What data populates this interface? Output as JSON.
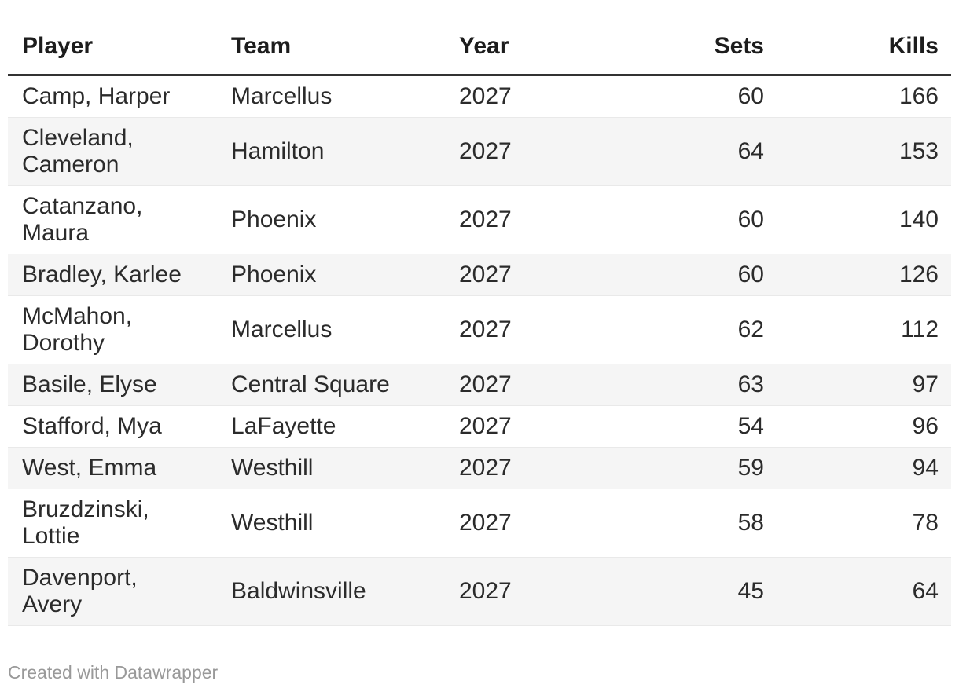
{
  "chart_data": {
    "type": "table",
    "title": "",
    "columns": [
      "Player",
      "Team",
      "Year",
      "Sets",
      "Kills"
    ],
    "column_keys": [
      "player",
      "team",
      "year",
      "sets",
      "kills"
    ],
    "column_align": [
      "left",
      "left",
      "left",
      "right",
      "right"
    ],
    "rows": [
      [
        "Camp, Harper",
        "Marcellus",
        "2027",
        "60",
        "166"
      ],
      [
        "Cleveland, Cameron",
        "Hamilton",
        "2027",
        "64",
        "153"
      ],
      [
        "Catanzano, Maura",
        "Phoenix",
        "2027",
        "60",
        "140"
      ],
      [
        "Bradley, Karlee",
        "Phoenix",
        "2027",
        "60",
        "126"
      ],
      [
        "McMahon, Dorothy",
        "Marcellus",
        "2027",
        "62",
        "112"
      ],
      [
        "Basile, Elyse",
        "Central Square",
        "2027",
        "63",
        "97"
      ],
      [
        "Stafford, Mya",
        "LaFayette",
        "2027",
        "54",
        "96"
      ],
      [
        "West, Emma",
        "Westhill",
        "2027",
        "59",
        "94"
      ],
      [
        "Bruzdzinski, Lottie",
        "Westhill",
        "2027",
        "58",
        "78"
      ],
      [
        "Davenport, Avery",
        "Baldwinsville",
        "2027",
        "45",
        "64"
      ]
    ],
    "layout_hints": {
      "striped_rows": "even",
      "header_rule": "thick-dark",
      "grid": "horizontal-only"
    }
  },
  "footer": {
    "attribution": "Created with Datawrapper"
  },
  "colors": {
    "background": "#ffffff",
    "stripe": "#f5f5f5",
    "row_border": "#e9e9e9",
    "header_border": "#333333",
    "body_text": "#2b2b2b",
    "header_text": "#1d1d1d",
    "footer_text": "#999999"
  }
}
